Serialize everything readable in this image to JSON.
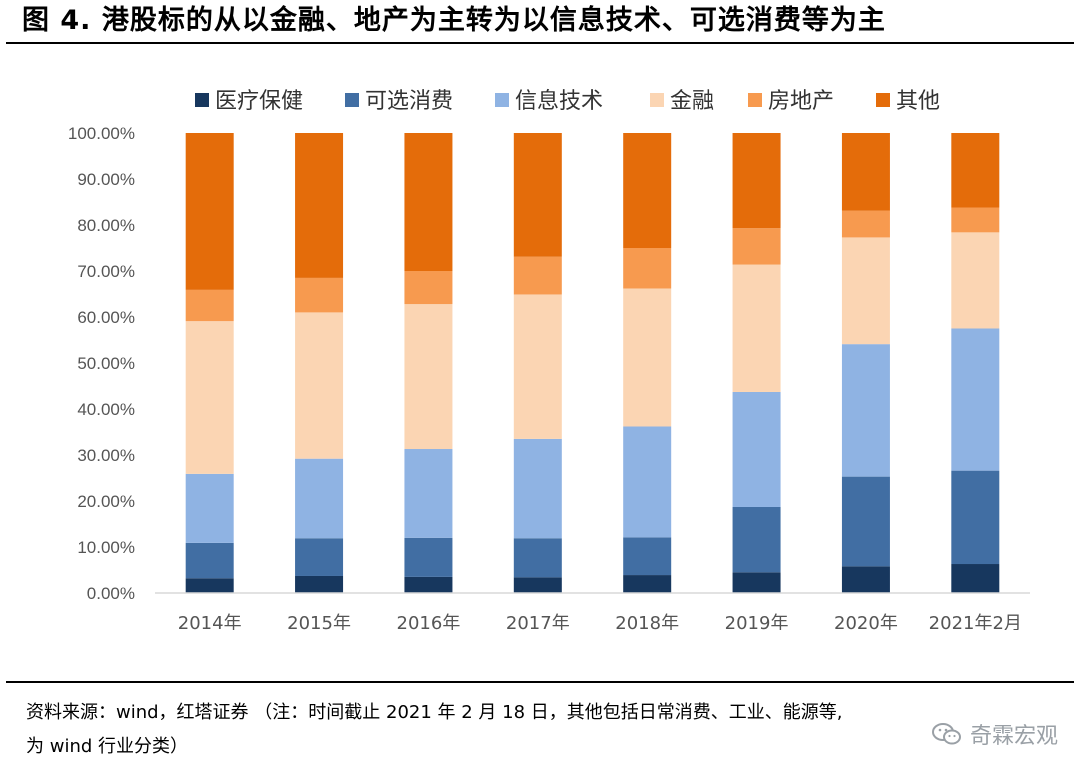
{
  "title": "图 4. 港股标的从以金融、地产为主转为以信息技术、可选消费等为主",
  "source_line1": "资料来源：wind，红塔证券 （注：时间截止 2021 年 2 月 18 日，其他包括日常消费、工业、能源等,",
  "source_line2": "为 wind 行业分类）",
  "watermark": "奇霖宏观",
  "chart_data": {
    "type": "bar",
    "stacked": true,
    "categories": [
      "2014年",
      "2015年",
      "2016年",
      "2017年",
      "2018年",
      "2019年",
      "2020年",
      "2021年2月"
    ],
    "series": [
      {
        "name": "医疗保健",
        "color": "#17375e",
        "values": [
          3.2,
          3.7,
          3.5,
          3.4,
          3.9,
          4.5,
          5.8,
          6.3
        ]
      },
      {
        "name": "可选消费",
        "color": "#416ea3",
        "values": [
          7.7,
          8.2,
          8.5,
          8.5,
          8.2,
          14.2,
          19.5,
          20.3
        ]
      },
      {
        "name": "信息技术",
        "color": "#8fb3e3",
        "values": [
          15.0,
          17.3,
          19.3,
          21.6,
          24.1,
          25.0,
          28.8,
          30.9
        ]
      },
      {
        "name": "金融",
        "color": "#fbd5b3",
        "values": [
          33.2,
          31.8,
          31.5,
          31.4,
          30.0,
          27.7,
          23.2,
          20.9
        ]
      },
      {
        "name": "房地产",
        "color": "#f79a4f",
        "values": [
          6.8,
          7.5,
          7.2,
          8.2,
          8.8,
          7.9,
          5.8,
          5.4
        ]
      },
      {
        "name": "其他",
        "color": "#e46c0a",
        "values": [
          34.1,
          31.5,
          30.0,
          26.9,
          25.0,
          20.7,
          16.9,
          16.2
        ]
      }
    ],
    "y_ticks": [
      "0.00%",
      "10.00%",
      "20.00%",
      "30.00%",
      "40.00%",
      "50.00%",
      "60.00%",
      "70.00%",
      "80.00%",
      "90.00%",
      "100.00%"
    ],
    "ylim": [
      0,
      100
    ],
    "legend_position": "top",
    "grid": false
  }
}
